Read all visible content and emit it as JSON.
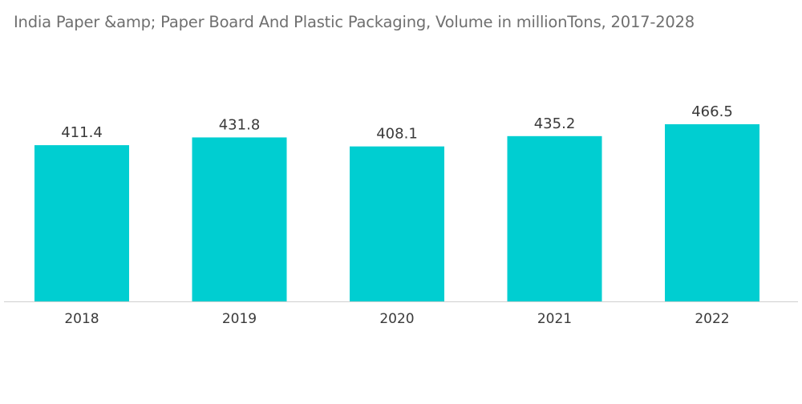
{
  "chart_data": {
    "type": "bar",
    "title": "India Paper &amp; Paper Board And Plastic Packaging, Volume in millionTons, 2017-2028",
    "categories": [
      "2018",
      "2019",
      "2020",
      "2021",
      "2022"
    ],
    "values": [
      411.4,
      431.8,
      408.1,
      435.2,
      466.5
    ],
    "value_labels": [
      "411.4",
      "431.8",
      "408.1",
      "435.2",
      "466.5"
    ],
    "xlabel": "",
    "ylabel": "",
    "ylim": [
      0,
      466.5
    ],
    "grid": false,
    "legend": "none",
    "bar_color": "#00ced1",
    "axis_color": "#d0d0d0"
  }
}
